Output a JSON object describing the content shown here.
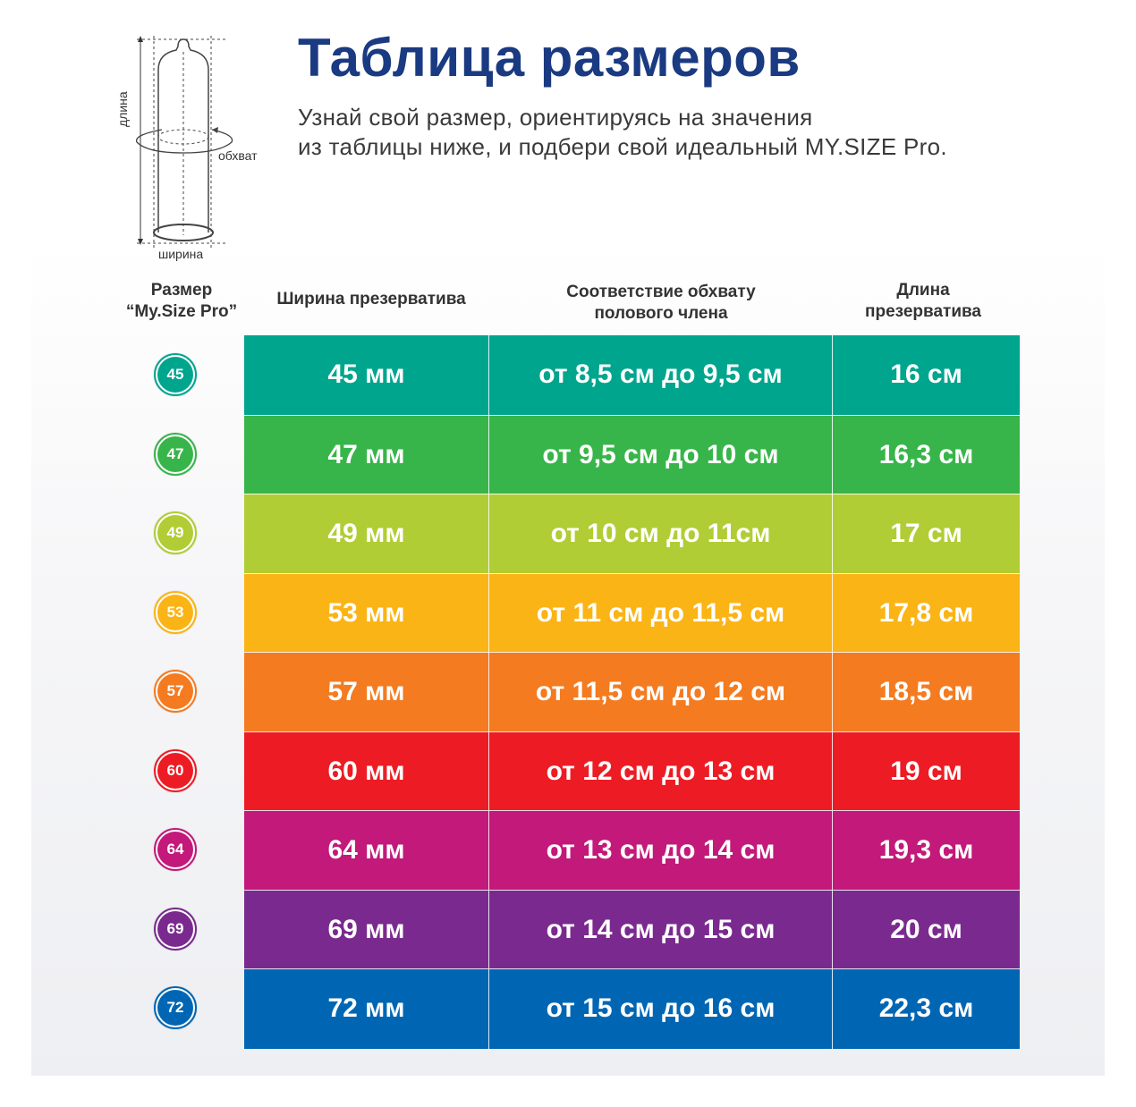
{
  "header": {
    "title": "Таблица размеров",
    "subtitle_line1": "Узнай свой размер, ориентируясь на значения",
    "subtitle_line2": "из таблицы ниже, и подбери свой идеальный MY.SIZE Pro."
  },
  "diagram": {
    "icon": "condom-outline-icon",
    "length_label": "длина",
    "girth_label": "обхват",
    "width_label": "ширина"
  },
  "columns": {
    "size_line1": "Размер",
    "size_line2": "“My.Size Pro”",
    "width": "Ширина презерватива",
    "girth_line1": "Соответствие обхвату",
    "girth_line2": "полового члена",
    "length_line1": "Длина",
    "length_line2": "презерватива"
  },
  "rows": [
    {
      "size": "45",
      "width": "45 мм",
      "girth": "от 8,5 см до 9,5 см",
      "length": "16 см",
      "color": "#00a58e"
    },
    {
      "size": "47",
      "width": "47 мм",
      "girth": "от 9,5 см до 10 см",
      "length": "16,3 см",
      "color": "#38b54a"
    },
    {
      "size": "49",
      "width": "49 мм",
      "girth": "от 10 см до 11см",
      "length": "17 см",
      "color": "#b0cd35"
    },
    {
      "size": "53",
      "width": "53 мм",
      "girth": "от 11 см до 11,5 см",
      "length": "17,8 см",
      "color": "#fbb415"
    },
    {
      "size": "57",
      "width": "57 мм",
      "girth": "от 11,5 см до 12 см",
      "length": "18,5 см",
      "color": "#f47b20"
    },
    {
      "size": "60",
      "width": "60 мм",
      "girth": "от 12 см до 13 см",
      "length": "19 см",
      "color": "#ed1c24"
    },
    {
      "size": "64",
      "width": "64 мм",
      "girth": "от 13 см до 14 см",
      "length": "19,3 см",
      "color": "#c2197a"
    },
    {
      "size": "69",
      "width": "69 мм",
      "girth": "от 14 см до 15 см",
      "length": "20 см",
      "color": "#7a2a8e"
    },
    {
      "size": "72",
      "width": "72 мм",
      "girth": "от 15 см до 16 см",
      "length": "22,3 см",
      "color": "#0066b3"
    }
  ]
}
